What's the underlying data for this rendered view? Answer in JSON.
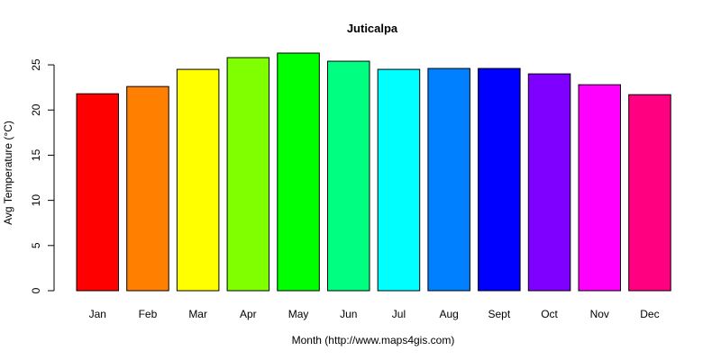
{
  "chart_data": {
    "type": "bar",
    "title": "Juticalpa",
    "xlabel": "Month (http://www.maps4gis.com)",
    "ylabel": "Avg Temperature (°C)",
    "categories": [
      "Jan",
      "Feb",
      "Mar",
      "Apr",
      "May",
      "Jun",
      "Jul",
      "Aug",
      "Sept",
      "Oct",
      "Nov",
      "Dec"
    ],
    "values": [
      21.8,
      22.6,
      24.5,
      25.8,
      26.3,
      25.4,
      24.5,
      24.6,
      24.6,
      24.0,
      22.8,
      21.7
    ],
    "colors": [
      "#FF0000",
      "#FF8000",
      "#FFFF00",
      "#80FF00",
      "#00FF00",
      "#00FF80",
      "#00FFFF",
      "#0080FF",
      "#0000FF",
      "#8000FF",
      "#FF00FF",
      "#FF0080"
    ],
    "yticks": [
      0,
      5,
      10,
      15,
      20,
      25
    ],
    "ylim": [
      0,
      26.3
    ],
    "grid": false,
    "legend": "none"
  }
}
